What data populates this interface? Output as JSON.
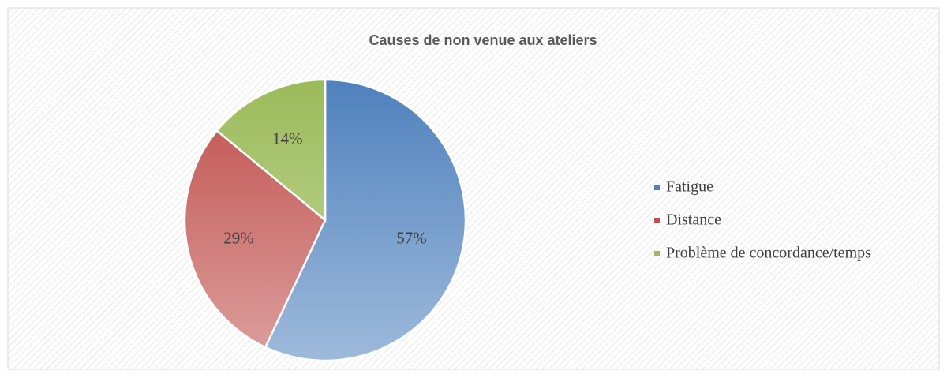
{
  "chart_data": {
    "type": "pie",
    "title": "Causes de non venue aux ateliers",
    "categories": [
      "Fatigue",
      "Distance",
      "Problème de concordance/temps"
    ],
    "values": [
      57,
      29,
      14
    ],
    "value_labels": [
      "57%",
      "29%",
      "14%"
    ],
    "colors": [
      "#4f81bd",
      "#c0504d",
      "#9bbb59"
    ],
    "legend": "right"
  }
}
